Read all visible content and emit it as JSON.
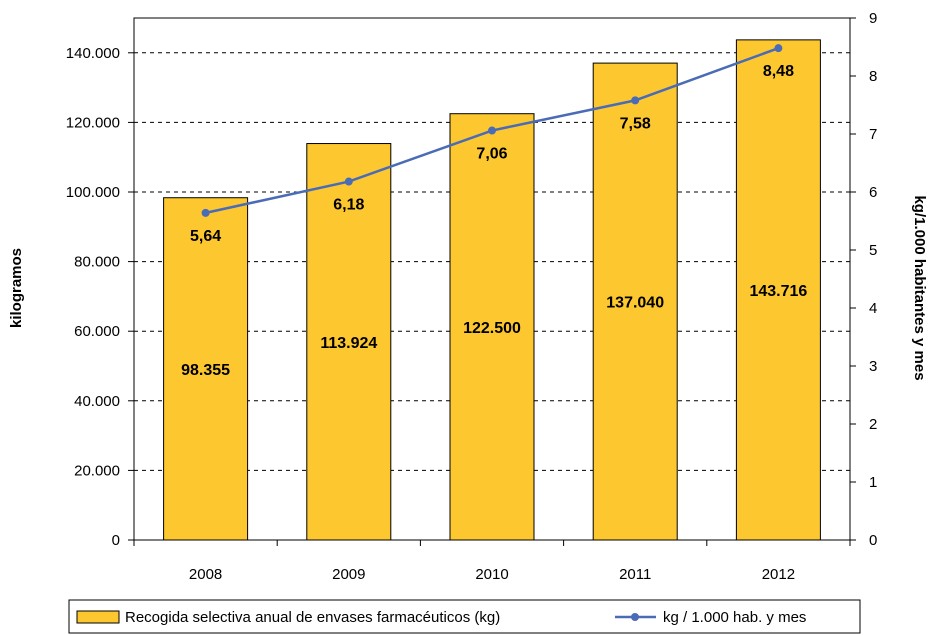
{
  "chart_data": {
    "type": "bar",
    "categories": [
      "2008",
      "2009",
      "2010",
      "2011",
      "2012"
    ],
    "series": [
      {
        "name": "Recogida selectiva anual de envases farmacéuticos (kg)",
        "type": "bar",
        "axis": "left",
        "values": [
          98355,
          113924,
          122500,
          137040,
          143716
        ],
        "labels": [
          "98.355",
          "113.924",
          "122.500",
          "137.040",
          "143.716"
        ],
        "color": "#FDC82F"
      },
      {
        "name": "kg / 1.000 hab. y mes",
        "type": "line",
        "axis": "right",
        "values": [
          5.64,
          6.18,
          7.06,
          7.58,
          8.48
        ],
        "labels": [
          "5,64",
          "6,18",
          "7,06",
          "7,58",
          "8,48"
        ],
        "color": "#4A6BB5"
      }
    ],
    "ylabel": "kilogramos",
    "y2label": "kg/1.000 habitantes y mes",
    "ylim": [
      0,
      150000
    ],
    "y2lim": [
      0,
      9
    ],
    "yticks": [
      0,
      20000,
      40000,
      60000,
      80000,
      100000,
      120000,
      140000
    ],
    "ytick_labels": [
      "0",
      "20.000",
      "40.000",
      "60.000",
      "80.000",
      "100.000",
      "120.000",
      "140.000"
    ],
    "y2ticks": [
      0,
      1,
      2,
      3,
      4,
      5,
      6,
      7,
      8,
      9
    ],
    "y2tick_labels": [
      "0",
      "1",
      "2",
      "3",
      "4",
      "5",
      "6",
      "7",
      "8",
      "9"
    ],
    "grid": true,
    "grid_style": "dashed",
    "legend_position": "bottom"
  }
}
